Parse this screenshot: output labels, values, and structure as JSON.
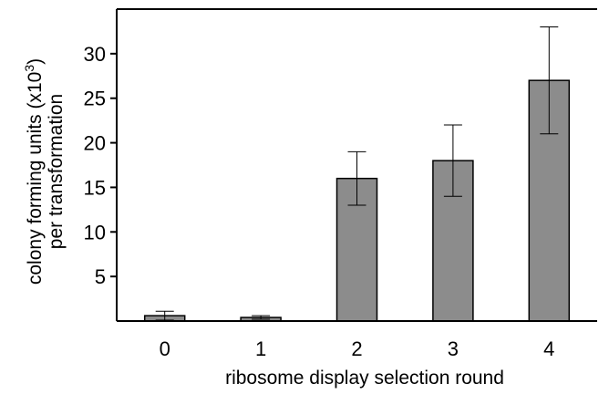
{
  "chart_data": {
    "type": "bar",
    "categories": [
      "0",
      "1",
      "2",
      "3",
      "4"
    ],
    "series": [
      {
        "values": [
          0.6,
          0.4,
          16,
          18,
          27
        ],
        "error_low": [
          0.1,
          0.2,
          13,
          14,
          21
        ],
        "error_high": [
          1.1,
          0.6,
          19,
          22,
          33
        ]
      }
    ],
    "xlabel": "ribosome display selection round",
    "ylabel_line1": "colony forming units (x10",
    "ylabel_sup": "3",
    "ylabel_line1_end": ")",
    "ylabel_line2": "per transformation",
    "ylim": [
      0,
      35
    ],
    "yticks": [
      5,
      10,
      15,
      20,
      25,
      30
    ],
    "bar_color": "#8c8c8c",
    "grid": false,
    "legend": "none"
  }
}
